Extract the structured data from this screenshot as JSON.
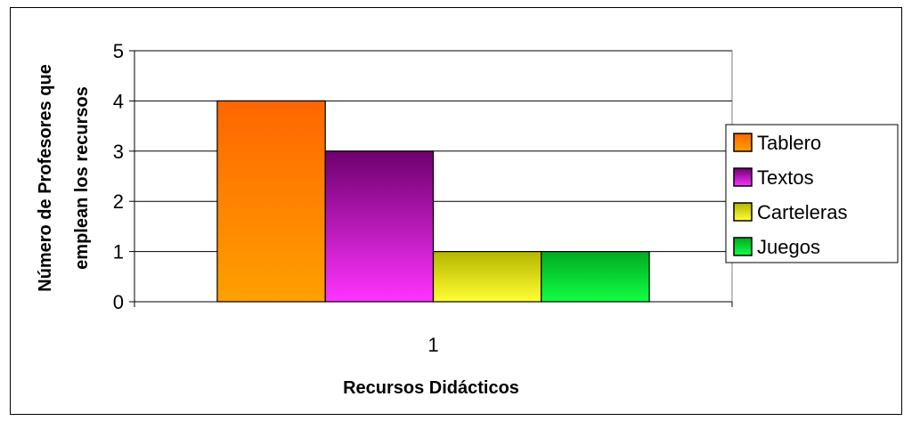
{
  "chart_data": {
    "type": "bar",
    "categories": [
      "1"
    ],
    "series": [
      {
        "name": "Tablero",
        "values": [
          4
        ],
        "color_top": "#ff6600",
        "color_bottom": "#ffa000"
      },
      {
        "name": "Textos",
        "values": [
          3
        ],
        "color_top": "#6e006e",
        "color_bottom": "#ff33ff"
      },
      {
        "name": "Carteleras",
        "values": [
          1
        ],
        "color_top": "#b5b500",
        "color_bottom": "#ffff33"
      },
      {
        "name": "Juegos",
        "values": [
          1
        ],
        "color_top": "#00aa22",
        "color_bottom": "#11ff44"
      }
    ],
    "ylim": [
      0,
      5
    ],
    "yticks": [
      "0",
      "1",
      "2",
      "3",
      "4",
      "5"
    ],
    "xlabel": "Recursos Didácticos",
    "ylabel_lines": [
      "Número de Profesores que",
      "emplean los recursos"
    ],
    "grid": true,
    "legend_position": "right"
  }
}
